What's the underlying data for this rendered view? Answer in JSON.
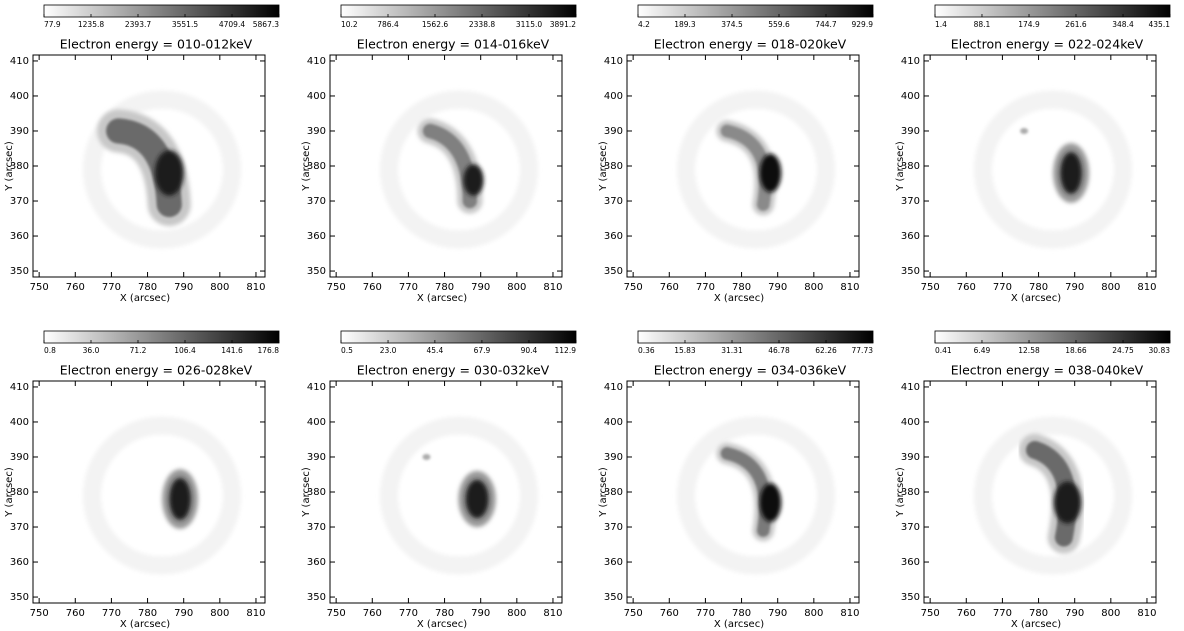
{
  "chart_data": [
    {
      "type": "image",
      "title": "Electron energy = 010-012keV",
      "xlabel": "X (arcsec)",
      "ylabel": "Y (arcsec)",
      "xlim": [
        748.3,
        812.5
      ],
      "ylim": [
        348.3,
        411.7
      ],
      "xticks": [
        750,
        760,
        770,
        780,
        790,
        800,
        810
      ],
      "yticks": [
        350,
        360,
        370,
        380,
        390,
        400,
        410
      ],
      "clim": [
        77.9,
        5867.3
      ],
      "cticks": [
        77.9,
        1235.8,
        2393.7,
        3551.5,
        4709.4,
        5867.3
      ]
    },
    {
      "type": "image",
      "title": "Electron energy = 014-016keV",
      "xlabel": "X (arcsec)",
      "ylabel": "Y (arcsec)",
      "xlim": [
        748.3,
        812.5
      ],
      "ylim": [
        348.3,
        411.7
      ],
      "xticks": [
        750,
        760,
        770,
        780,
        790,
        800,
        810
      ],
      "yticks": [
        350,
        360,
        370,
        380,
        390,
        400,
        410
      ],
      "clim": [
        10.2,
        3891.2
      ],
      "cticks": [
        10.2,
        786.4,
        1562.6,
        2338.8,
        {
          "value": 3115,
          "label": "3115.0"
        },
        3891.2
      ]
    },
    {
      "type": "image",
      "title": "Electron energy = 018-020keV",
      "xlabel": "X (arcsec)",
      "ylabel": "Y (arcsec)",
      "xlim": [
        748.3,
        812.5
      ],
      "ylim": [
        348.3,
        411.7
      ],
      "xticks": [
        750,
        760,
        770,
        780,
        790,
        800,
        810
      ],
      "yticks": [
        350,
        360,
        370,
        380,
        390,
        400,
        410
      ],
      "clim": [
        4.2,
        929.9
      ],
      "cticks": [
        4.2,
        189.3,
        374.5,
        559.6,
        744.7,
        929.9
      ]
    },
    {
      "type": "image",
      "title": "Electron energy = 022-024keV",
      "xlabel": "X (arcsec)",
      "ylabel": "Y (arcsec)",
      "xlim": [
        748.3,
        812.5
      ],
      "ylim": [
        348.3,
        411.7
      ],
      "xticks": [
        750,
        760,
        770,
        780,
        790,
        800,
        810
      ],
      "yticks": [
        350,
        360,
        370,
        380,
        390,
        400,
        410
      ],
      "clim": [
        1.4,
        435.1
      ],
      "cticks": [
        1.4,
        88.1,
        174.9,
        261.6,
        348.4,
        435.1
      ]
    },
    {
      "type": "image",
      "title": "Electron energy = 026-028keV",
      "xlabel": "X (arcsec)",
      "ylabel": "Y (arcsec)",
      "xlim": [
        748.3,
        812.5
      ],
      "ylim": [
        348.3,
        411.7
      ],
      "xticks": [
        750,
        760,
        770,
        780,
        790,
        800,
        810
      ],
      "yticks": [
        350,
        360,
        370,
        380,
        390,
        400,
        410
      ],
      "clim": [
        0.8,
        176.8
      ],
      "cticks": [
        0.8,
        {
          "value": 36,
          "label": "36.0"
        },
        71.2,
        106.4,
        141.6,
        176.8
      ]
    },
    {
      "type": "image",
      "title": "Electron energy = 030-032keV",
      "xlabel": "X (arcsec)",
      "ylabel": "Y (arcsec)",
      "xlim": [
        748.3,
        812.5
      ],
      "ylim": [
        348.3,
        411.7
      ],
      "xticks": [
        750,
        760,
        770,
        780,
        790,
        800,
        810
      ],
      "yticks": [
        350,
        360,
        370,
        380,
        390,
        400,
        410
      ],
      "clim": [
        0.5,
        112.9
      ],
      "cticks": [
        0.5,
        {
          "value": 23,
          "label": "23.0"
        },
        45.4,
        67.9,
        90.4,
        112.9
      ]
    },
    {
      "type": "image",
      "title": "Electron energy = 034-036keV",
      "xlabel": "X (arcsec)",
      "ylabel": "Y (arcsec)",
      "xlim": [
        748.3,
        812.5
      ],
      "ylim": [
        348.3,
        411.7
      ],
      "xticks": [
        750,
        760,
        770,
        780,
        790,
        800,
        810
      ],
      "yticks": [
        350,
        360,
        370,
        380,
        390,
        400,
        410
      ],
      "clim": [
        0.36,
        77.73
      ],
      "cticks": [
        0.36,
        15.83,
        31.31,
        46.78,
        62.26,
        77.73
      ]
    },
    {
      "type": "image",
      "title": "Electron energy = 038-040keV",
      "xlabel": "X (arcsec)",
      "ylabel": "Y (arcsec)",
      "xlim": [
        748.3,
        812.5
      ],
      "ylim": [
        348.3,
        411.7
      ],
      "xticks": [
        750,
        760,
        770,
        780,
        790,
        800,
        810
      ],
      "yticks": [
        350,
        360,
        370,
        380,
        390,
        400,
        410
      ],
      "clim": [
        0.41,
        30.83
      ],
      "cticks": [
        0.41,
        6.49,
        12.58,
        18.66,
        24.75,
        30.83
      ]
    }
  ]
}
